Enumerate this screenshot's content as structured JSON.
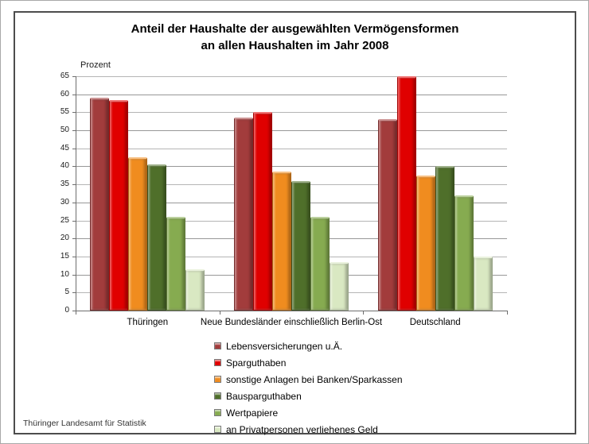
{
  "title_line1": "Anteil der Haushalte der ausgewählten Vermögensformen",
  "title_line2": "an allen Haushalten im Jahr 2008",
  "source_note": "Thüringer Landesamt für Statistik",
  "chart_data": {
    "type": "bar",
    "title": "Anteil der Haushalte der ausgewählten Vermögensformen an allen Haushalten im Jahr 2008",
    "ylabel": "Prozent",
    "xlabel": "",
    "ylim": [
      0,
      65
    ],
    "ytick_step": 5,
    "grid": true,
    "legend_position": "bottom",
    "categories": [
      "Thüringen",
      "Neue Bundesländer einschließlich Berlin-Ost",
      "Deutschland"
    ],
    "series": [
      {
        "name": "Lebensversicherungen u.Ä.",
        "color": "#A23C3C",
        "values": [
          59,
          53.5,
          53
        ]
      },
      {
        "name": "Sparguthaben",
        "color": "#E00000",
        "values": [
          58.5,
          55,
          65
        ]
      },
      {
        "name": "sonstige Anlagen bei Banken/Sparkassen",
        "color": "#F08C1F",
        "values": [
          42.5,
          38.5,
          37.5
        ]
      },
      {
        "name": "Bausparguthaben",
        "color": "#4F6F2A",
        "values": [
          40.5,
          36,
          40
        ]
      },
      {
        "name": "Wertpapiere",
        "color": "#86AB50",
        "values": [
          26,
          26,
          32
        ]
      },
      {
        "name": "an Privatpersonen verliehenes Geld",
        "color": "#D9E8C2",
        "values": [
          11.5,
          13.5,
          15
        ]
      }
    ]
  }
}
